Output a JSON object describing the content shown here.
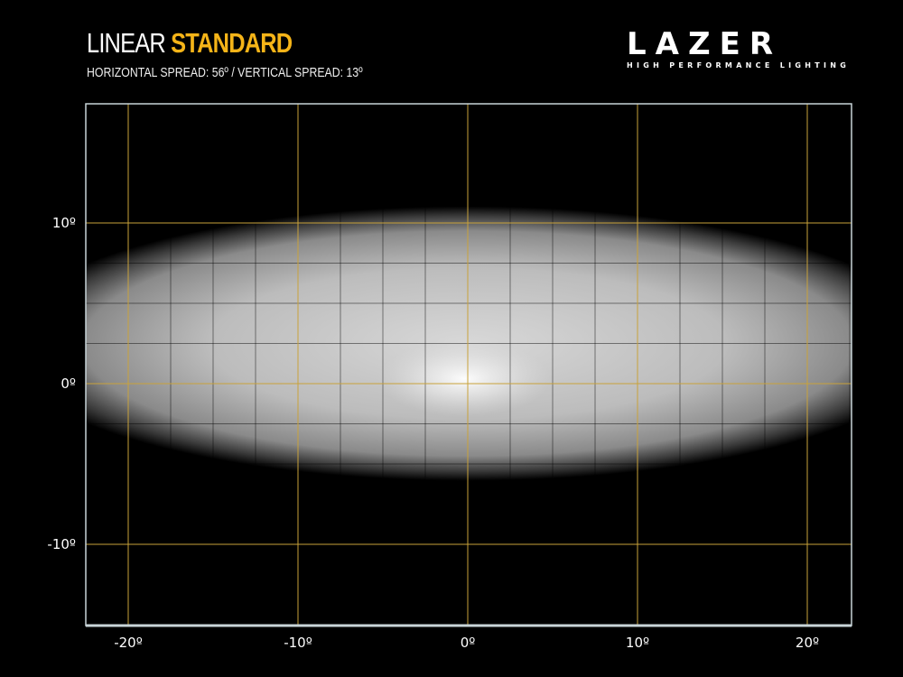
{
  "header": {
    "title_main": "LINEAR",
    "title_highlight": "STANDARD",
    "subtitle": "HORIZONTAL SPREAD: 56º  /  VERTICAL SPREAD:  13º"
  },
  "logo": {
    "word": "LAZER",
    "tagline": "HIGH PERFORMANCE LIGHTING"
  },
  "colors": {
    "background": "#000000",
    "accent": "#f5b418",
    "gridline": "#c9a23a",
    "frame": "#c8d4d8"
  },
  "chart_data": {
    "type": "heatmap",
    "description_kind": "beam pattern",
    "xlim": [
      -22.5,
      22.5
    ],
    "ylim": [
      -15,
      17.4
    ],
    "x_ticks": [
      -20,
      -10,
      0,
      10,
      20
    ],
    "y_ticks": [
      10,
      0,
      -10
    ],
    "x_tick_labels": [
      "-20º",
      "-10º",
      "0º",
      "10º",
      "20º"
    ],
    "y_tick_labels": [
      "10º",
      "0º",
      "-10º"
    ],
    "minor_grid_step": 2.5,
    "grid": true,
    "horizontal_spread_deg": 56,
    "vertical_spread_deg": 13,
    "beam": {
      "center": [
        0,
        2.5
      ],
      "hotspot": [
        -0.2,
        0.3
      ]
    }
  }
}
